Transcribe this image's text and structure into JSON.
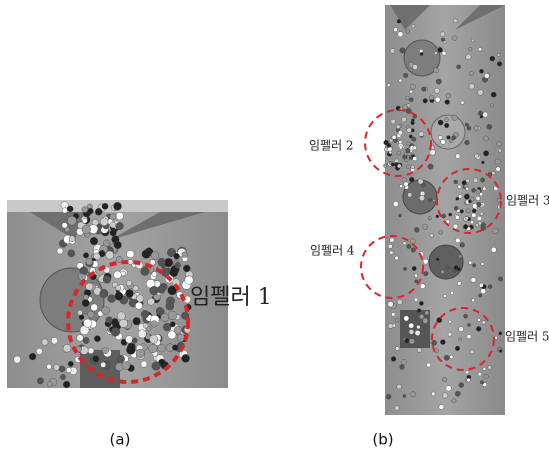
{
  "panels": [
    {
      "caption": "(a)",
      "labels": [
        "임펠러 1"
      ]
    },
    {
      "caption": "(b)",
      "labels": [
        "임펠러 2",
        "임펠러 3",
        "임펠러 4",
        "임펠러 5"
      ]
    }
  ]
}
